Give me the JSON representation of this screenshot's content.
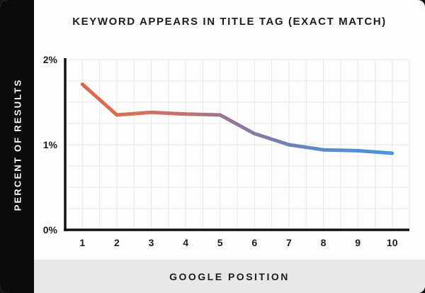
{
  "chart_data": {
    "type": "line",
    "title": "KEYWORD APPEARS IN TITLE TAG (EXACT MATCH)",
    "xlabel": "GOOGLE POSITION",
    "ylabel": "PERCENT OF RESULTS",
    "x": [
      1,
      2,
      3,
      4,
      5,
      6,
      7,
      8,
      9,
      10
    ],
    "values": [
      1.71,
      1.35,
      1.38,
      1.36,
      1.35,
      1.13,
      1.0,
      0.94,
      0.93,
      0.9
    ],
    "ylim": [
      0,
      2
    ],
    "x_ticks": [
      "1",
      "2",
      "3",
      "4",
      "5",
      "6",
      "7",
      "8",
      "9",
      "10"
    ],
    "y_ticks": [
      {
        "label": "0%",
        "value": 0
      },
      {
        "label": "1%",
        "value": 1
      },
      {
        "label": "2%",
        "value": 2
      }
    ],
    "grid": true,
    "grid_x_divisions": 20,
    "grid_y_divisions": 8,
    "legend_position": "none",
    "line_gradient": [
      {
        "offset": 0,
        "color": "#E0654B"
      },
      {
        "offset": 0.12,
        "color": "#DC6D55"
      },
      {
        "offset": 0.33,
        "color": "#C77170"
      },
      {
        "offset": 0.45,
        "color": "#9D7590"
      },
      {
        "offset": 0.56,
        "color": "#847BA3"
      },
      {
        "offset": 0.67,
        "color": "#6E83B5"
      },
      {
        "offset": 0.78,
        "color": "#5A8CC9"
      },
      {
        "offset": 1,
        "color": "#4B94DC"
      }
    ],
    "colors": {
      "axis": "#111111",
      "grid": "#e9e9e9",
      "title_text": "#1d1d1d",
      "tick_text": "#1d1d1d",
      "sidebar_bg": "#0c0c0c",
      "sidebar_text": "#ffffff",
      "footer_bg": "#e9e8e6",
      "panel_bg": "#fdfdfb",
      "line_start": "#E0654B",
      "line_mid": "#8F7799",
      "line_end": "#4B94DC"
    }
  }
}
